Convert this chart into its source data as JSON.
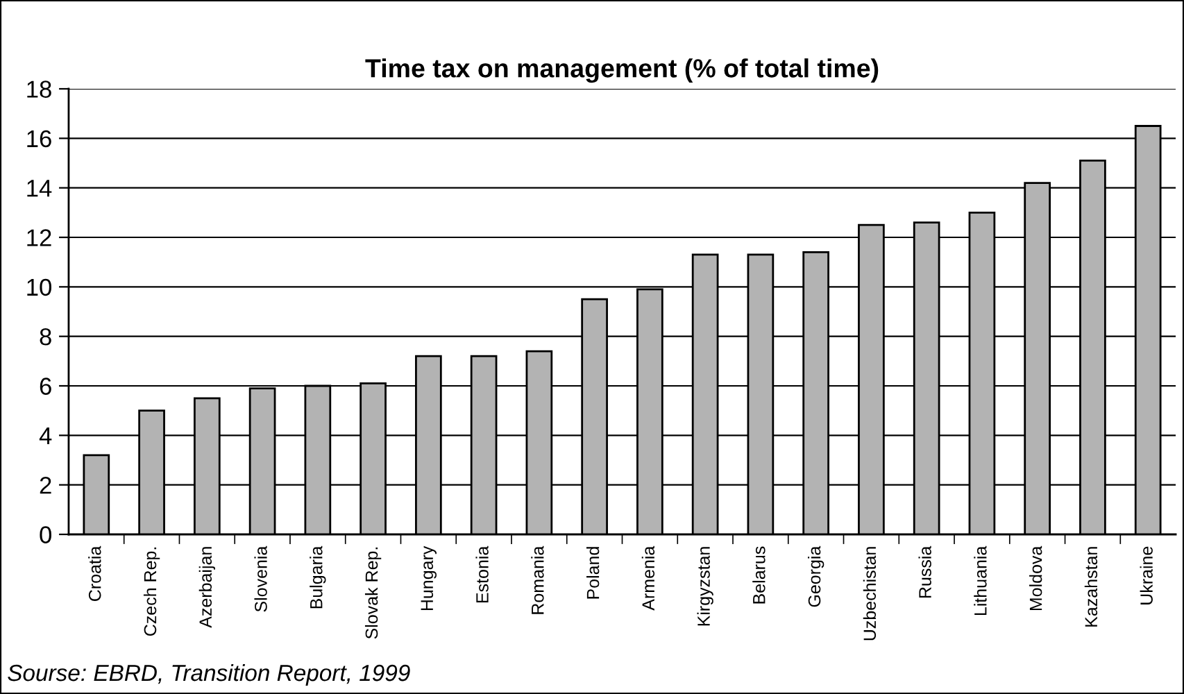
{
  "chart_data": {
    "type": "bar",
    "title": "Time tax on management (% of total time)",
    "categories": [
      "Croatia",
      "Czech Rep.",
      "Azerbaijan",
      "Slovenia",
      "Bulgaria",
      "Slovak Rep.",
      "Hungary",
      "Estonia",
      "Romania",
      "Poland",
      "Armenia",
      "Kirgyzstan",
      "Belarus",
      "Georgia",
      "Uzbechistan",
      "Russia",
      "Lithuania",
      "Moldova",
      "Kazahstan",
      "Ukraine"
    ],
    "series": [
      {
        "color": "#b3b3b3",
        "values": [
          3.2,
          5.0,
          5.5,
          5.9,
          6.0,
          6.1,
          7.2,
          7.2,
          7.4,
          9.5,
          9.9,
          11.3,
          11.3,
          11.4,
          12.5,
          12.6,
          13.0,
          14.2,
          15.1,
          16.5
        ]
      }
    ],
    "ylim": [
      0,
      18
    ],
    "yticks": [
      0,
      2,
      4,
      6,
      8,
      10,
      12,
      14,
      16,
      18
    ],
    "grid": "y",
    "annotations": [
      "Sourse: EBRD, Transition Report, 1999"
    ]
  }
}
